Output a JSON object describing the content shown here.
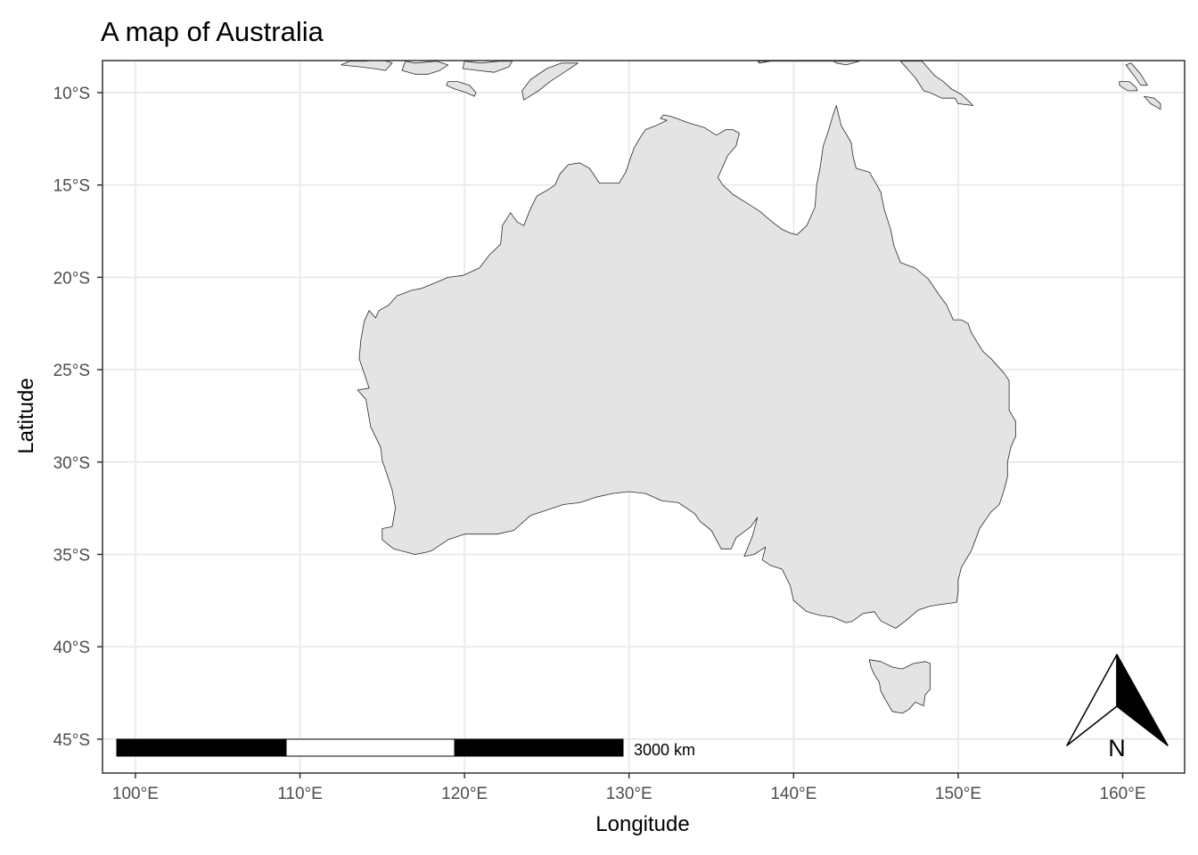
{
  "title": "A map of Australia",
  "xlabel": "Longitude",
  "ylabel": "Latitude",
  "x_ticks": [
    {
      "value": 100,
      "label": "100°E"
    },
    {
      "value": 110,
      "label": "110°E"
    },
    {
      "value": 120,
      "label": "120°E"
    },
    {
      "value": 130,
      "label": "130°E"
    },
    {
      "value": 140,
      "label": "140°E"
    },
    {
      "value": 150,
      "label": "150°E"
    },
    {
      "value": 160,
      "label": "160°E"
    }
  ],
  "y_ticks": [
    {
      "value": -10,
      "label": "10°S"
    },
    {
      "value": -15,
      "label": "15°S"
    },
    {
      "value": -20,
      "label": "20°S"
    },
    {
      "value": -25,
      "label": "25°S"
    },
    {
      "value": -30,
      "label": "30°S"
    },
    {
      "value": -35,
      "label": "35°S"
    },
    {
      "value": -40,
      "label": "40°S"
    },
    {
      "value": -45,
      "label": "45°S"
    }
  ],
  "xlim": [
    98,
    162.3
  ],
  "ylim": [
    -46.7,
    -8.3
  ],
  "land_fill": "#e4e4e4",
  "land_stroke": "#2b2b2b",
  "grid": true,
  "scale_bar": {
    "label": "3000 km",
    "segment_colors": [
      "#000000",
      "#ffffff",
      "#000000"
    ]
  },
  "north_arrow": {
    "label": "N"
  },
  "land_polygons": [
    {
      "name": "Australia",
      "coords": [
        [
          113.9,
          -22.4
        ],
        [
          113.7,
          -23.4
        ],
        [
          113.6,
          -24.4
        ],
        [
          114.2,
          -26.0
        ],
        [
          113.5,
          -26.1
        ],
        [
          114.0,
          -26.6
        ],
        [
          114.3,
          -28.1
        ],
        [
          114.9,
          -29.2
        ],
        [
          115.0,
          -29.9
        ],
        [
          115.6,
          -31.5
        ],
        [
          115.8,
          -32.5
        ],
        [
          115.6,
          -33.5
        ],
        [
          115.0,
          -33.6
        ],
        [
          115.0,
          -34.2
        ],
        [
          115.7,
          -34.7
        ],
        [
          117.0,
          -35.0
        ],
        [
          117.6,
          -34.9
        ],
        [
          118.0,
          -34.8
        ],
        [
          119.0,
          -34.2
        ],
        [
          120.0,
          -33.9
        ],
        [
          121.0,
          -33.9
        ],
        [
          122.0,
          -33.9
        ],
        [
          123.0,
          -33.7
        ],
        [
          124.0,
          -32.9
        ],
        [
          125.0,
          -32.6
        ],
        [
          126.0,
          -32.3
        ],
        [
          127.0,
          -32.2
        ],
        [
          128.0,
          -31.9
        ],
        [
          129.0,
          -31.7
        ],
        [
          130.0,
          -31.6
        ],
        [
          131.0,
          -31.7
        ],
        [
          132.0,
          -32.1
        ],
        [
          133.0,
          -32.2
        ],
        [
          134.0,
          -32.8
        ],
        [
          134.3,
          -33.2
        ],
        [
          135.0,
          -33.7
        ],
        [
          135.6,
          -34.7
        ],
        [
          136.2,
          -34.7
        ],
        [
          136.5,
          -34.1
        ],
        [
          137.4,
          -33.5
        ],
        [
          137.8,
          -33.0
        ],
        [
          137.5,
          -34.0
        ],
        [
          137.0,
          -35.1
        ],
        [
          137.6,
          -35.0
        ],
        [
          138.3,
          -34.6
        ],
        [
          138.1,
          -35.3
        ],
        [
          138.6,
          -35.6
        ],
        [
          139.3,
          -35.8
        ],
        [
          139.8,
          -36.7
        ],
        [
          140.0,
          -37.5
        ],
        [
          140.8,
          -38.1
        ],
        [
          141.6,
          -38.3
        ],
        [
          142.4,
          -38.4
        ],
        [
          143.2,
          -38.7
        ],
        [
          143.6,
          -38.6
        ],
        [
          144.2,
          -38.2
        ],
        [
          144.9,
          -38.1
        ],
        [
          145.3,
          -38.6
        ],
        [
          146.2,
          -39.0
        ],
        [
          146.8,
          -38.6
        ],
        [
          147.6,
          -38.0
        ],
        [
          148.3,
          -37.8
        ],
        [
          149.0,
          -37.7
        ],
        [
          149.9,
          -37.6
        ],
        [
          150.0,
          -37.0
        ],
        [
          150.0,
          -36.4
        ],
        [
          150.2,
          -35.7
        ],
        [
          150.8,
          -34.8
        ],
        [
          151.1,
          -34.1
        ],
        [
          151.3,
          -33.6
        ],
        [
          152.0,
          -32.7
        ],
        [
          152.5,
          -32.3
        ],
        [
          152.8,
          -31.5
        ],
        [
          153.0,
          -30.8
        ],
        [
          153.0,
          -30.0
        ],
        [
          153.2,
          -29.2
        ],
        [
          153.5,
          -28.6
        ],
        [
          153.5,
          -27.8
        ],
        [
          153.1,
          -27.2
        ],
        [
          153.1,
          -26.5
        ],
        [
          153.1,
          -25.6
        ],
        [
          152.8,
          -25.2
        ],
        [
          152.0,
          -24.4
        ],
        [
          151.5,
          -24.0
        ],
        [
          150.8,
          -23.0
        ],
        [
          150.6,
          -22.5
        ],
        [
          150.2,
          -22.3
        ],
        [
          149.7,
          -22.3
        ],
        [
          149.3,
          -21.5
        ],
        [
          148.8,
          -20.9
        ],
        [
          148.2,
          -20.1
        ],
        [
          147.4,
          -19.5
        ],
        [
          146.5,
          -19.2
        ],
        [
          146.1,
          -18.3
        ],
        [
          145.9,
          -17.4
        ],
        [
          145.5,
          -16.3
        ],
        [
          145.3,
          -15.4
        ],
        [
          145.0,
          -14.9
        ],
        [
          144.6,
          -14.3
        ],
        [
          143.8,
          -14.1
        ],
        [
          143.6,
          -13.4
        ],
        [
          143.5,
          -12.7
        ],
        [
          142.9,
          -11.8
        ],
        [
          142.6,
          -10.7
        ],
        [
          142.4,
          -11.2
        ],
        [
          142.1,
          -12.1
        ],
        [
          141.8,
          -12.9
        ],
        [
          141.6,
          -14.1
        ],
        [
          141.4,
          -15.0
        ],
        [
          141.3,
          -16.2
        ],
        [
          140.8,
          -17.2
        ],
        [
          140.2,
          -17.7
        ],
        [
          139.8,
          -17.6
        ],
        [
          139.3,
          -17.4
        ],
        [
          138.7,
          -17.0
        ],
        [
          137.9,
          -16.4
        ],
        [
          137.2,
          -16.0
        ],
        [
          136.3,
          -15.5
        ],
        [
          135.7,
          -15.0
        ],
        [
          135.4,
          -14.6
        ],
        [
          135.8,
          -13.8
        ],
        [
          136.0,
          -13.4
        ],
        [
          136.5,
          -12.9
        ],
        [
          136.7,
          -12.2
        ],
        [
          136.3,
          -12.0
        ],
        [
          135.9,
          -12.0
        ],
        [
          135.3,
          -12.3
        ],
        [
          134.6,
          -11.9
        ],
        [
          133.5,
          -11.6
        ],
        [
          132.6,
          -11.3
        ],
        [
          132.1,
          -11.2
        ],
        [
          131.9,
          -11.4
        ],
        [
          132.3,
          -11.5
        ],
        [
          131.6,
          -11.8
        ],
        [
          131.0,
          -12.0
        ],
        [
          130.7,
          -12.4
        ],
        [
          130.3,
          -13.0
        ],
        [
          130.1,
          -13.5
        ],
        [
          129.8,
          -14.3
        ],
        [
          129.4,
          -14.9
        ],
        [
          128.9,
          -14.9
        ],
        [
          128.2,
          -14.9
        ],
        [
          127.6,
          -14.1
        ],
        [
          127.0,
          -13.8
        ],
        [
          126.3,
          -13.9
        ],
        [
          125.8,
          -14.4
        ],
        [
          125.5,
          -15.0
        ],
        [
          125.0,
          -15.3
        ],
        [
          124.4,
          -15.6
        ],
        [
          124.0,
          -16.3
        ],
        [
          123.6,
          -17.2
        ],
        [
          123.2,
          -17.0
        ],
        [
          122.8,
          -16.5
        ],
        [
          122.3,
          -17.2
        ],
        [
          122.2,
          -18.2
        ],
        [
          121.5,
          -18.8
        ],
        [
          120.9,
          -19.5
        ],
        [
          119.9,
          -19.9
        ],
        [
          119.0,
          -20.0
        ],
        [
          118.2,
          -20.3
        ],
        [
          117.4,
          -20.6
        ],
        [
          116.8,
          -20.7
        ],
        [
          115.9,
          -21.0
        ],
        [
          115.4,
          -21.5
        ],
        [
          114.8,
          -21.8
        ],
        [
          114.6,
          -22.2
        ],
        [
          114.2,
          -21.8
        ],
        [
          113.9,
          -22.4
        ]
      ]
    },
    {
      "name": "Tasmania",
      "coords": [
        [
          144.6,
          -40.7
        ],
        [
          145.3,
          -40.8
        ],
        [
          146.0,
          -41.1
        ],
        [
          146.6,
          -41.2
        ],
        [
          147.3,
          -40.9
        ],
        [
          148.0,
          -40.8
        ],
        [
          148.3,
          -40.9
        ],
        [
          148.3,
          -41.7
        ],
        [
          148.3,
          -42.3
        ],
        [
          148.0,
          -42.6
        ],
        [
          147.9,
          -43.2
        ],
        [
          147.4,
          -43.0
        ],
        [
          147.0,
          -43.4
        ],
        [
          146.6,
          -43.6
        ],
        [
          146.0,
          -43.5
        ],
        [
          145.6,
          -42.9
        ],
        [
          145.3,
          -42.4
        ],
        [
          145.2,
          -41.9
        ],
        [
          144.9,
          -41.5
        ],
        [
          144.7,
          -41.1
        ],
        [
          144.6,
          -40.7
        ]
      ]
    },
    {
      "name": "Timor",
      "coords": [
        [
          123.6,
          -10.4
        ],
        [
          124.5,
          -9.9
        ],
        [
          125.2,
          -9.4
        ],
        [
          126.4,
          -8.7
        ],
        [
          126.9,
          -8.4
        ],
        [
          125.9,
          -8.4
        ],
        [
          125.0,
          -8.7
        ],
        [
          124.0,
          -9.3
        ],
        [
          123.5,
          -9.9
        ],
        [
          123.6,
          -10.4
        ]
      ]
    },
    {
      "name": "Sumba",
      "coords": [
        [
          118.9,
          -9.6
        ],
        [
          119.4,
          -9.8
        ],
        [
          120.1,
          -10.0
        ],
        [
          120.6,
          -10.2
        ],
        [
          120.7,
          -10.0
        ],
        [
          120.3,
          -9.6
        ],
        [
          119.6,
          -9.4
        ],
        [
          119.0,
          -9.4
        ],
        [
          118.9,
          -9.6
        ]
      ]
    },
    {
      "name": "Lombok-Sumbawa",
      "coords": [
        [
          116.2,
          -8.8
        ],
        [
          117.0,
          -9.0
        ],
        [
          117.8,
          -9.0
        ],
        [
          118.5,
          -8.8
        ],
        [
          119.0,
          -8.5
        ],
        [
          118.3,
          -8.3
        ],
        [
          117.0,
          -8.4
        ],
        [
          116.4,
          -8.3
        ],
        [
          116.2,
          -8.8
        ]
      ]
    },
    {
      "name": "Flores",
      "coords": [
        [
          119.9,
          -8.7
        ],
        [
          120.8,
          -8.8
        ],
        [
          121.8,
          -8.9
        ],
        [
          122.7,
          -8.6
        ],
        [
          122.9,
          -8.3
        ],
        [
          122.1,
          -8.3
        ],
        [
          121.0,
          -8.4
        ],
        [
          120.0,
          -8.3
        ],
        [
          119.9,
          -8.7
        ]
      ]
    },
    {
      "name": "Java-Bali",
      "coords": [
        [
          112.5,
          -8.5
        ],
        [
          113.6,
          -8.6
        ],
        [
          114.5,
          -8.7
        ],
        [
          115.2,
          -8.8
        ],
        [
          115.6,
          -8.4
        ],
        [
          114.9,
          -8.2
        ],
        [
          114.0,
          -8.3
        ],
        [
          113.0,
          -8.3
        ],
        [
          112.5,
          -8.5
        ]
      ]
    },
    {
      "name": "New Guinea",
      "coords": [
        [
          137.9,
          -8.4
        ],
        [
          138.6,
          -8.3
        ],
        [
          139.2,
          -8.3
        ],
        [
          140.0,
          -8.3
        ],
        [
          141.0,
          -8.3
        ],
        [
          141.8,
          -8.3
        ],
        [
          142.4,
          -8.3
        ],
        [
          142.6,
          -8.4
        ],
        [
          143.2,
          -8.5
        ],
        [
          143.6,
          -8.4
        ],
        [
          144.0,
          -8.3
        ],
        [
          137.9,
          -8.3
        ]
      ]
    },
    {
      "name": "Frederik Hendrik Island",
      "coords": [
        [
          138.4,
          -8.3
        ],
        [
          138.0,
          -8.4
        ],
        [
          137.8,
          -8.3
        ],
        [
          138.4,
          -8.3
        ]
      ]
    },
    {
      "name": "South-east New Guinea",
      "coords": [
        [
          146.5,
          -8.3
        ],
        [
          146.9,
          -8.7
        ],
        [
          147.4,
          -9.2
        ],
        [
          147.9,
          -9.9
        ],
        [
          148.3,
          -10.0
        ],
        [
          149.0,
          -10.3
        ],
        [
          149.8,
          -10.3
        ],
        [
          150.0,
          -10.6
        ],
        [
          150.9,
          -10.7
        ],
        [
          150.7,
          -10.5
        ],
        [
          150.2,
          -10.1
        ],
        [
          149.6,
          -9.8
        ],
        [
          149.1,
          -9.4
        ],
        [
          148.6,
          -9.1
        ],
        [
          148.2,
          -8.7
        ],
        [
          147.9,
          -8.4
        ],
        [
          147.8,
          -8.3
        ],
        [
          146.5,
          -8.3
        ]
      ]
    },
    {
      "name": "Solomon Islands",
      "coords": [
        [
          160.5,
          -8.4
        ],
        [
          161.1,
          -9.0
        ],
        [
          161.5,
          -9.6
        ],
        [
          161.1,
          -9.6
        ],
        [
          160.7,
          -9.1
        ],
        [
          160.2,
          -8.5
        ],
        [
          160.5,
          -8.4
        ]
      ]
    },
    {
      "name": "Guadalcanal",
      "coords": [
        [
          159.8,
          -9.4
        ],
        [
          160.4,
          -9.4
        ],
        [
          160.8,
          -9.7
        ],
        [
          160.9,
          -9.9
        ],
        [
          160.3,
          -9.9
        ],
        [
          159.8,
          -9.6
        ],
        [
          159.8,
          -9.4
        ]
      ]
    },
    {
      "name": "Makira",
      "coords": [
        [
          161.3,
          -10.2
        ],
        [
          161.9,
          -10.3
        ],
        [
          162.3,
          -10.6
        ],
        [
          162.3,
          -10.9
        ],
        [
          161.7,
          -10.6
        ],
        [
          161.3,
          -10.2
        ]
      ]
    }
  ]
}
